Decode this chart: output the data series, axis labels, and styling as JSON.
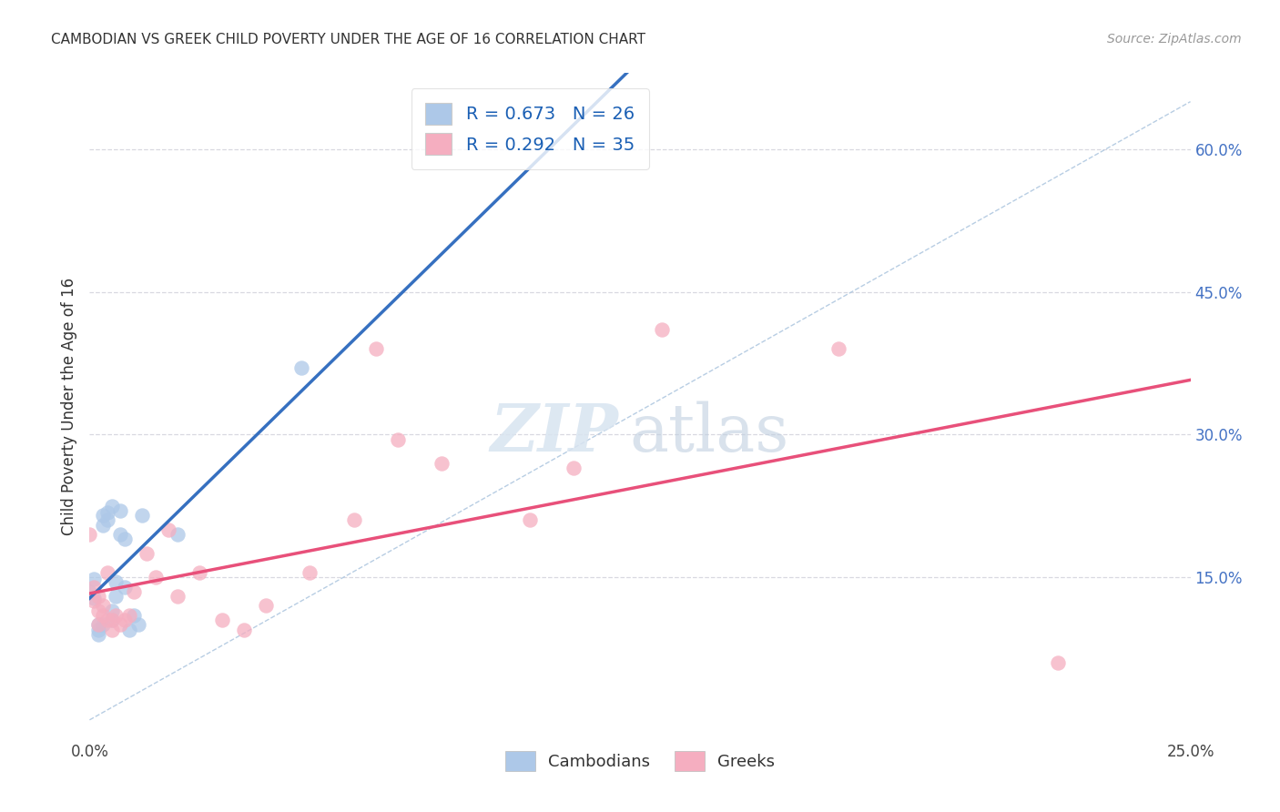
{
  "title": "CAMBODIAN VS GREEK CHILD POVERTY UNDER THE AGE OF 16 CORRELATION CHART",
  "source": "Source: ZipAtlas.com",
  "ylabel": "Child Poverty Under the Age of 16",
  "xlim": [
    0.0,
    0.25
  ],
  "ylim": [
    -0.02,
    0.68
  ],
  "right_yticks": [
    0.15,
    0.3,
    0.45,
    0.6
  ],
  "right_yticklabels": [
    "15.0%",
    "30.0%",
    "45.0%",
    "60.0%"
  ],
  "xticks": [
    0.0,
    0.05,
    0.1,
    0.15,
    0.2,
    0.25
  ],
  "xticklabels": [
    "0.0%",
    "",
    "",
    "",
    "",
    "25.0%"
  ],
  "cambodian_R": 0.673,
  "cambodian_N": 26,
  "greek_R": 0.292,
  "greek_N": 35,
  "cambodian_color": "#adc8e8",
  "greek_color": "#f5aec0",
  "cambodian_line_color": "#3670c0",
  "greek_line_color": "#e8507a",
  "diagonal_color": "#b0c8e0",
  "background_color": "#ffffff",
  "grid_color": "#d8d8e0",
  "cambodians_x": [
    0.0,
    0.001,
    0.001,
    0.002,
    0.002,
    0.002,
    0.003,
    0.003,
    0.003,
    0.004,
    0.004,
    0.005,
    0.005,
    0.005,
    0.006,
    0.006,
    0.007,
    0.007,
    0.008,
    0.008,
    0.009,
    0.01,
    0.011,
    0.012,
    0.02,
    0.048
  ],
  "cambodians_y": [
    0.135,
    0.128,
    0.148,
    0.1,
    0.095,
    0.09,
    0.215,
    0.205,
    0.1,
    0.218,
    0.21,
    0.225,
    0.115,
    0.105,
    0.145,
    0.13,
    0.22,
    0.195,
    0.19,
    0.14,
    0.095,
    0.11,
    0.1,
    0.215,
    0.195,
    0.37
  ],
  "greeks_x": [
    0.0,
    0.001,
    0.001,
    0.002,
    0.002,
    0.002,
    0.003,
    0.003,
    0.004,
    0.004,
    0.005,
    0.005,
    0.006,
    0.007,
    0.008,
    0.009,
    0.01,
    0.013,
    0.015,
    0.018,
    0.02,
    0.025,
    0.03,
    0.035,
    0.04,
    0.05,
    0.06,
    0.065,
    0.07,
    0.08,
    0.1,
    0.11,
    0.13,
    0.17,
    0.22
  ],
  "greeks_y": [
    0.195,
    0.14,
    0.125,
    0.115,
    0.1,
    0.13,
    0.11,
    0.12,
    0.105,
    0.155,
    0.105,
    0.095,
    0.11,
    0.1,
    0.105,
    0.11,
    0.135,
    0.175,
    0.15,
    0.2,
    0.13,
    0.155,
    0.105,
    0.095,
    0.12,
    0.155,
    0.21,
    0.39,
    0.295,
    0.27,
    0.21,
    0.265,
    0.41,
    0.39,
    0.06
  ]
}
